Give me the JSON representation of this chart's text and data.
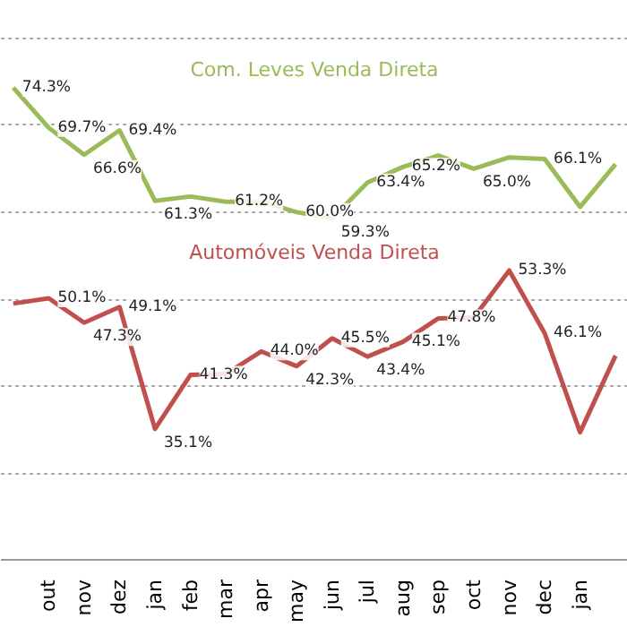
{
  "chart_data": {
    "type": "line",
    "categories": [
      null,
      "out",
      "nov",
      "dez",
      "jan",
      "feb",
      "mar",
      "apr",
      "may",
      "jun",
      "jul",
      "aug",
      "sep",
      "oct",
      "nov",
      "dec",
      "jan",
      null
    ],
    "series": [
      {
        "name": "Com. Leves Venda Direta",
        "color": "#9bbb59",
        "values": [
          74.3,
          69.7,
          66.6,
          69.4,
          61.3,
          61.8,
          61.2,
          61.2,
          60.0,
          59.3,
          63.4,
          65.2,
          66.5,
          65.0,
          66.3,
          66.1,
          60.6,
          65.5
        ],
        "value_labels": [
          "74.3%",
          "69.7%",
          "66.6%",
          "69.4%",
          "61.3%",
          null,
          "61.2%",
          null,
          "60.0%",
          "59.3%",
          "63.4%",
          "65.2%",
          null,
          "65.0%",
          null,
          "66.1%",
          null,
          null
        ]
      },
      {
        "name": "Automóveis Venda Direta",
        "color": "#c0504d",
        "values": [
          49.5,
          50.1,
          47.3,
          49.1,
          35.1,
          41.3,
          41.4,
          44.0,
          42.3,
          45.5,
          43.4,
          45.1,
          47.8,
          47.9,
          53.3,
          46.1,
          34.7,
          43.5
        ],
        "value_labels": [
          null,
          "50.1%",
          "47.3%",
          "49.1%",
          "35.1%",
          "41.3%",
          null,
          "44.0%",
          "42.3%",
          "45.5%",
          "43.4%",
          "45.1%",
          "47.8%",
          null,
          "53.3%",
          "46.1%",
          null,
          null
        ]
      }
    ],
    "tick_labels": "x",
    "grid": "y",
    "marker": "none",
    "line_style": "solid"
  }
}
